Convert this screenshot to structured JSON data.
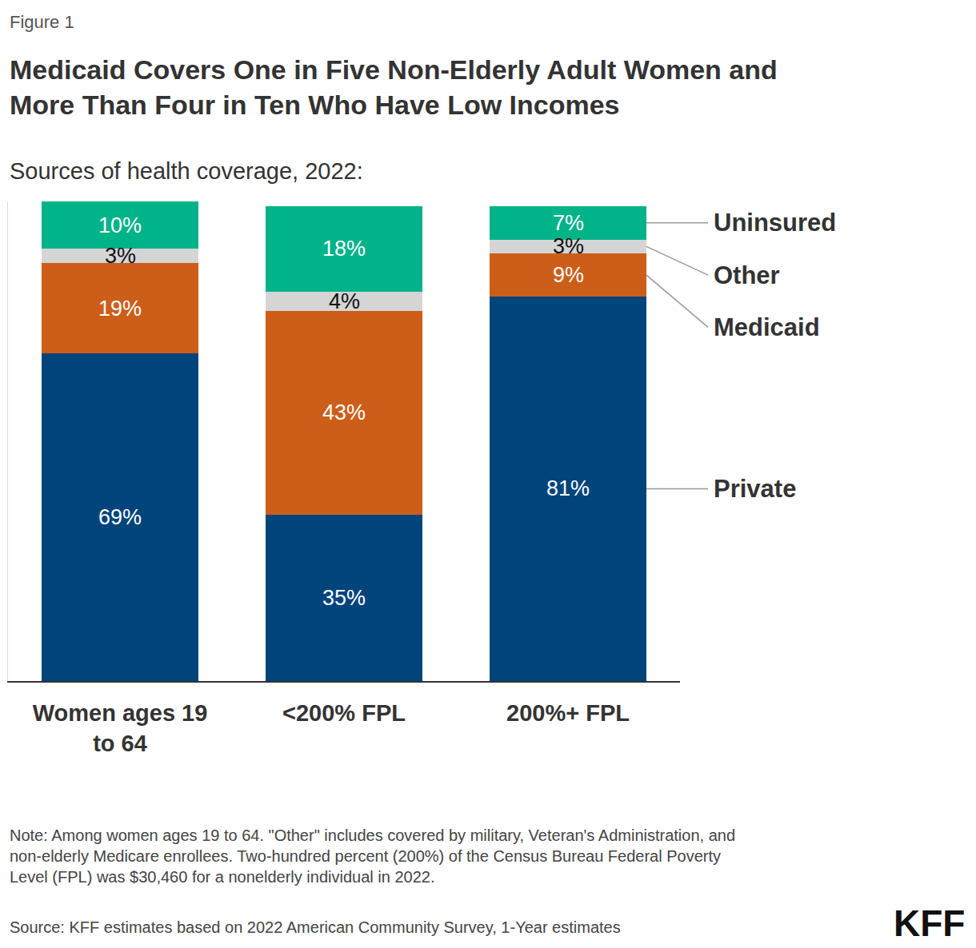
{
  "chart_data": {
    "type": "bar",
    "stacked": true,
    "figure_label": "Figure 1",
    "title": "Medicaid Covers One in Five Non-Elderly Adult Women and More Than Four in Ten Who Have Low Incomes",
    "subtitle": "Sources of health coverage, 2022:",
    "categories": [
      "Women ages 19 to 64",
      "<200% FPL",
      "200%+ FPL"
    ],
    "series": [
      {
        "name": "Private",
        "color": "#00447c",
        "values": [
          69,
          35,
          81
        ],
        "value_labels": [
          "69%",
          "35%",
          "81%"
        ]
      },
      {
        "name": "Medicaid",
        "color": "#cc5e1a",
        "values": [
          19,
          43,
          9
        ],
        "value_labels": [
          "19%",
          "43%",
          "9%"
        ]
      },
      {
        "name": "Other",
        "color": "#d5d5d5",
        "values": [
          3,
          4,
          3
        ],
        "value_labels": [
          "3%",
          "4%",
          "3%"
        ]
      },
      {
        "name": "Uninsured",
        "color": "#00b388",
        "values": [
          10,
          18,
          7
        ],
        "value_labels": [
          "10%",
          "18%",
          "7%"
        ]
      }
    ],
    "ylim": [
      0,
      101
    ],
    "yticks": [],
    "grid": false,
    "data_labels": true,
    "tick_labels": "x",
    "note": "Note: Among women ages 19 to 64. \"Other\" includes covered by military, Veteran's Administration, and non-elderly Medicare enrollees. Two-hundred percent (200%) of the Census Bureau Federal Poverty Level (FPL) was $30,460 for a nonelderly individual in 2022.",
    "source": "Source: KFF estimates based on 2022 American Community Survey, 1-Year estimates",
    "logo": "KFF"
  }
}
